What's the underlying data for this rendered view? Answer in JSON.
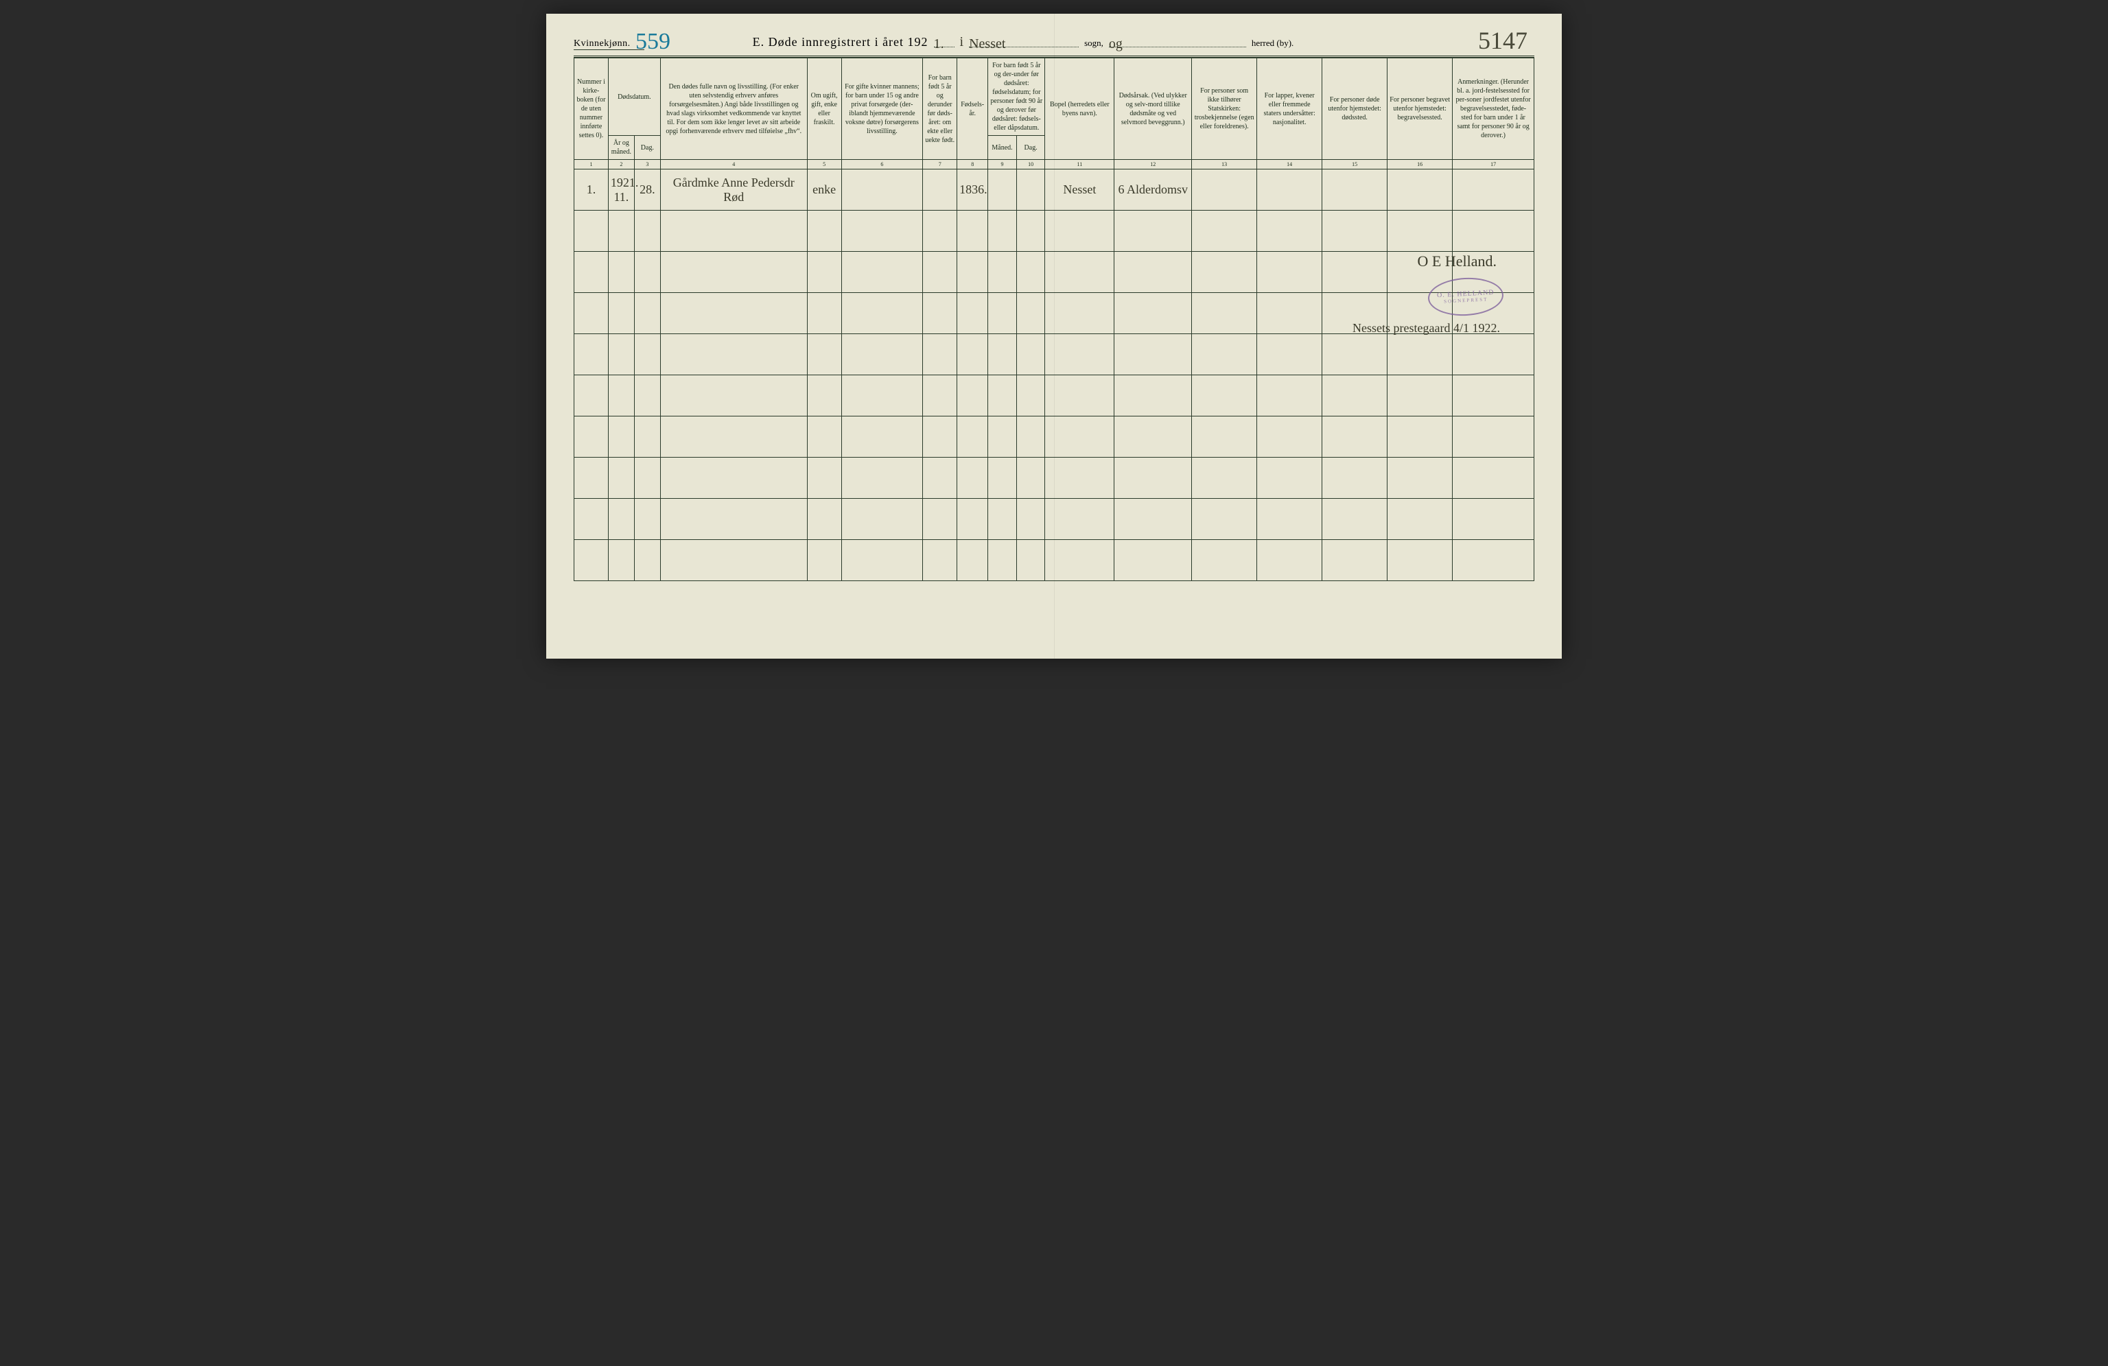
{
  "page": {
    "background": "#e8e6d4",
    "ink": "#1a2a1a",
    "handwriting_color": "#3a3a2a",
    "stamp_color": "#7a5a9a",
    "teal_ink": "#1a7a9a"
  },
  "header": {
    "gender_label": "Kvinnekjønn.",
    "hw_top_left": "559",
    "title_prefix": "E.   Døde innregistrert i året 192",
    "year_suffix_hw": "1.",
    "in_word_hw": "i",
    "sogn_hw": "Nesset",
    "sogn_label": "sogn,",
    "herred_hw": "og",
    "herred_label": "herred (by).",
    "hw_top_right": "5147"
  },
  "columns": [
    {
      "n": "1",
      "label": "Nummer i kirke-boken (for de uten nummer innførte settes 0).",
      "width": 42
    },
    {
      "n": "2",
      "label": "År og måned.",
      "width": 32
    },
    {
      "n": "3",
      "label": "Dag.",
      "width": 32
    },
    {
      "n": "2-3-group",
      "label": "Dødsdatum.",
      "width": 64
    },
    {
      "n": "4",
      "label": "Den dødes fulle navn og livsstilling. (For enker uten selvstendig erhverv anføres forsørgelsesmåten.) Angi både livsstillingen og hvad slags virksomhet vedkommende var knyttet til. For dem som ikke lenger levet av sitt arbeide opgi forhenværende erhverv med tilføielse „fhv“.",
      "width": 180
    },
    {
      "n": "5",
      "label": "Om ugift, gift, enke eller fraskilt.",
      "width": 42
    },
    {
      "n": "6",
      "label": "For gifte kvinner mannens; for barn under 15 og andre privat forsørgede (der-iblandt hjemmeværende voksne døtre) forsørgerens livsstilling.",
      "width": 100
    },
    {
      "n": "7",
      "label": "For barn født 5 år og derunder før døds-året: om ekte eller uekte født.",
      "width": 42
    },
    {
      "n": "8",
      "label": "Fødsels-år.",
      "width": 38
    },
    {
      "n": "9",
      "label": "Måned.",
      "width": 35
    },
    {
      "n": "10",
      "label": "Dag.",
      "width": 35
    },
    {
      "n": "9-10-group",
      "label": "For barn født 5 år og der-under før dødsåret: fødselsdatum; for personer født 90 år og derover før dødsåret: fødsels- eller dåpsdatum.",
      "width": 70
    },
    {
      "n": "11",
      "label": "Bopel (herredets eller byens navn).",
      "width": 85
    },
    {
      "n": "12",
      "label": "Dødsårsak. (Ved ulykker og selv-mord tillike dødsmåte og ved selvmord beveggrunn.)",
      "width": 95
    },
    {
      "n": "13",
      "label": "For personer som ikke tilhører Statskirken: trosbekjennelse (egen eller foreldrenes).",
      "width": 80
    },
    {
      "n": "14",
      "label": "For lapper, kvener eller fremmede staters undersåtter: nasjonalitet.",
      "width": 80
    },
    {
      "n": "15",
      "label": "For personer døde utenfor hjemstedet: dødssted.",
      "width": 80
    },
    {
      "n": "16",
      "label": "For personer begravet utenfor hjemstedet: begravelsessted.",
      "width": 80
    },
    {
      "n": "17",
      "label": "Anmerkninger. (Herunder bl. a. jord-festelsessted for per-soner jordfestet utenfor begravelsesstedet, føde-sted for barn under 1 år samt for personer 90 år og derover.)",
      "width": 100
    }
  ],
  "small_numbers": [
    "1",
    "2",
    "3",
    "4",
    "5",
    "6",
    "7",
    "8",
    "9",
    "10",
    "11",
    "12",
    "13",
    "14",
    "15",
    "16",
    "17"
  ],
  "rows": [
    {
      "c1": "1.",
      "c2": "1921. 11.",
      "c3": "28.",
      "c4": "Gårdmke Anne Pedersdr Rød",
      "c5": "enke",
      "c6": "",
      "c7": "",
      "c8": "1836.",
      "c9": "",
      "c10": "",
      "c11": "Nesset",
      "c12": "6 Alderdomsv",
      "c13": "",
      "c14": "",
      "c15": "",
      "c16": "",
      "c17": ""
    },
    {
      "c1": "",
      "c2": "",
      "c3": "",
      "c4": "",
      "c5": "",
      "c6": "",
      "c7": "",
      "c8": "",
      "c9": "",
      "c10": "",
      "c11": "",
      "c12": "",
      "c13": "",
      "c14": "",
      "c15": "",
      "c16": "",
      "c17": ""
    },
    {
      "c1": "",
      "c2": "",
      "c3": "",
      "c4": "",
      "c5": "",
      "c6": "",
      "c7": "",
      "c8": "",
      "c9": "",
      "c10": "",
      "c11": "",
      "c12": "",
      "c13": "",
      "c14": "",
      "c15": "",
      "c16": "",
      "c17": ""
    },
    {
      "c1": "",
      "c2": "",
      "c3": "",
      "c4": "",
      "c5": "",
      "c6": "",
      "c7": "",
      "c8": "",
      "c9": "",
      "c10": "",
      "c11": "",
      "c12": "",
      "c13": "",
      "c14": "",
      "c15": "",
      "c16": "",
      "c17": ""
    },
    {
      "c1": "",
      "c2": "",
      "c3": "",
      "c4": "",
      "c5": "",
      "c6": "",
      "c7": "",
      "c8": "",
      "c9": "",
      "c10": "",
      "c11": "",
      "c12": "",
      "c13": "",
      "c14": "",
      "c15": "",
      "c16": "",
      "c17": ""
    },
    {
      "c1": "",
      "c2": "",
      "c3": "",
      "c4": "",
      "c5": "",
      "c6": "",
      "c7": "",
      "c8": "",
      "c9": "",
      "c10": "",
      "c11": "",
      "c12": "",
      "c13": "",
      "c14": "",
      "c15": "",
      "c16": "",
      "c17": ""
    },
    {
      "c1": "",
      "c2": "",
      "c3": "",
      "c4": "",
      "c5": "",
      "c6": "",
      "c7": "",
      "c8": "",
      "c9": "",
      "c10": "",
      "c11": "",
      "c12": "",
      "c13": "",
      "c14": "",
      "c15": "",
      "c16": "",
      "c17": ""
    },
    {
      "c1": "",
      "c2": "",
      "c3": "",
      "c4": "",
      "c5": "",
      "c6": "",
      "c7": "",
      "c8": "",
      "c9": "",
      "c10": "",
      "c11": "",
      "c12": "",
      "c13": "",
      "c14": "",
      "c15": "",
      "c16": "",
      "c17": ""
    },
    {
      "c1": "",
      "c2": "",
      "c3": "",
      "c4": "",
      "c5": "",
      "c6": "",
      "c7": "",
      "c8": "",
      "c9": "",
      "c10": "",
      "c11": "",
      "c12": "",
      "c13": "",
      "c14": "",
      "c15": "",
      "c16": "",
      "c17": ""
    },
    {
      "c1": "",
      "c2": "",
      "c3": "",
      "c4": "",
      "c5": "",
      "c6": "",
      "c7": "",
      "c8": "",
      "c9": "",
      "c10": "",
      "c11": "",
      "c12": "",
      "c13": "",
      "c14": "",
      "c15": "",
      "c16": "",
      "c17": ""
    }
  ],
  "annotations": {
    "signature": "O E Helland.",
    "stamp_line1": "O. E. HELLAND",
    "stamp_line2": "SOGNEPREST",
    "place_date": "Nessets prestegaard 4/1 1922."
  }
}
